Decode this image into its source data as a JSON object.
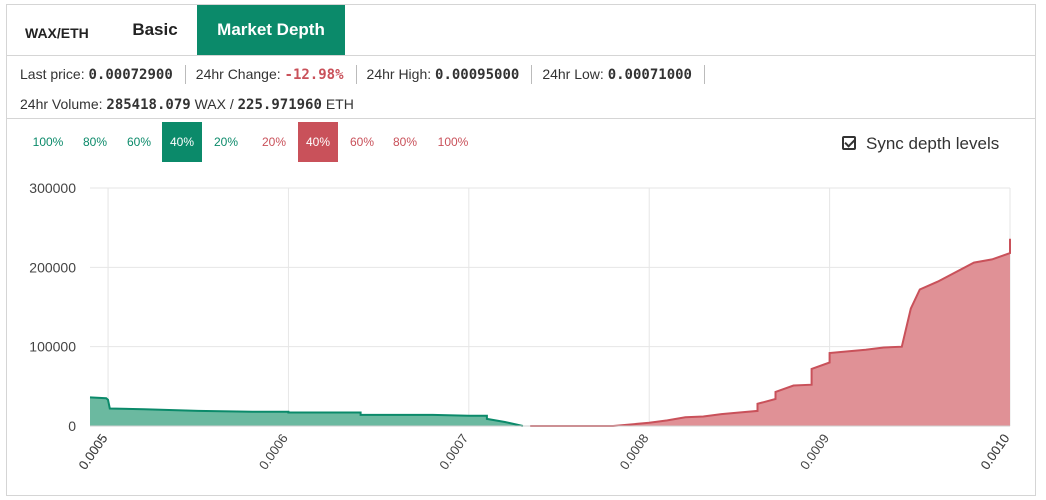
{
  "pair": "WAX/ETH",
  "tabs": {
    "basic": "Basic",
    "depth": "Market Depth"
  },
  "stats": {
    "last_price_label": "Last price:",
    "last_price": "0.00072900",
    "change_label": "24hr Change:",
    "change": "-12.98%",
    "high_label": "24hr High:",
    "high": "0.00095000",
    "low_label": "24hr Low:",
    "low": "0.00071000",
    "volume_label": "24hr Volume:",
    "volume_wax": "285418.079",
    "volume_wax_unit": "WAX /",
    "volume_eth": "225.971960",
    "volume_eth_unit": "ETH"
  },
  "depth_levels": {
    "buy": [
      "100%",
      "80%",
      "60%",
      "40%",
      "20%"
    ],
    "sell": [
      "20%",
      "40%",
      "60%",
      "80%",
      "100%"
    ],
    "active_buy": "40%",
    "active_sell": "40%"
  },
  "sync_label": "Sync depth levels",
  "sync_checked": true,
  "colors": {
    "buy": "#0b8a6a",
    "sell": "#c9515a",
    "buy_fill": "#6bb9a0",
    "sell_fill": "#e09196"
  },
  "chart_data": {
    "type": "area",
    "xlim": [
      0.00049,
      0.001
    ],
    "ylim": [
      0,
      300000
    ],
    "y_ticks": [
      "0",
      "100000",
      "200000",
      "300000"
    ],
    "x_ticks": [
      "0.0005",
      "0.0005",
      "0.0006",
      "0.0007",
      "0.0008",
      "0.0009",
      "0.0010",
      "0.0010"
    ],
    "x_tick_values": [
      0.0005,
      0.0005,
      0.0006,
      0.0007,
      0.0008,
      0.0009,
      0.001,
      0.001
    ],
    "grid": true,
    "series": [
      {
        "side": "bids",
        "x": [
          0.00049,
          0.000499,
          0.0005,
          0.000501,
          0.00052,
          0.00055,
          0.00058,
          0.0006,
          0.0006,
          0.00062,
          0.00064,
          0.00064,
          0.00066,
          0.00068,
          0.0007,
          0.00071,
          0.00071,
          0.00072,
          0.00073
        ],
        "y": [
          36000,
          35000,
          33000,
          22000,
          21000,
          19000,
          18000,
          18000,
          17000,
          17000,
          17000,
          14000,
          14000,
          14000,
          13000,
          13000,
          9000,
          5000,
          0
        ]
      },
      {
        "side": "asks",
        "x": [
          0.000734,
          0.00078,
          0.0008,
          0.00081,
          0.00082,
          0.00083,
          0.00084,
          0.00085,
          0.00086,
          0.00086,
          0.00087,
          0.00087,
          0.00088,
          0.00089,
          0.00089,
          0.0009,
          0.0009,
          0.00091,
          0.00092,
          0.00093,
          0.00094,
          0.000945,
          0.00095,
          0.00096,
          0.00098,
          0.00099,
          0.001,
          0.001
        ],
        "y": [
          0,
          0,
          4000,
          7000,
          11000,
          12000,
          15000,
          17000,
          19000,
          28000,
          34000,
          43000,
          51000,
          52000,
          72000,
          80000,
          92000,
          94000,
          96000,
          99000,
          100000,
          148000,
          172000,
          182000,
          206000,
          210000,
          218000,
          236000
        ]
      }
    ]
  }
}
